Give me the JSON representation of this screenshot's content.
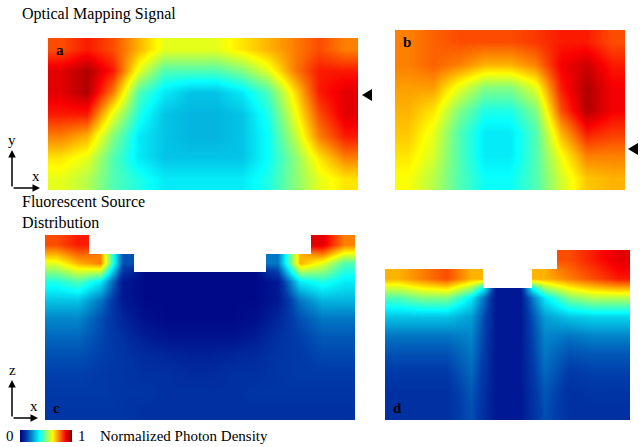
{
  "headings": [
    "Optical Mapping Signal",
    "Fluorescent Source Distribution"
  ],
  "axis_icons": [
    {
      "vertical": "y",
      "horizontal": "x"
    },
    {
      "vertical": "z",
      "horizontal": "x"
    }
  ],
  "colorbar": {
    "label": "Normalized Photon Density",
    "range": [
      0,
      1
    ],
    "ticks": [
      0,
      1
    ]
  },
  "chart_data": [
    {
      "type": "heatmap",
      "title": "a",
      "tick_labels": false,
      "z": [
        [
          0.8,
          0.85,
          0.8,
          0.7,
          0.6,
          0.6,
          0.6,
          0.65,
          0.7,
          0.75,
          0.8,
          0.75
        ],
        [
          0.9,
          0.95,
          0.85,
          0.6,
          0.45,
          0.45,
          0.45,
          0.5,
          0.6,
          0.75,
          0.85,
          0.85
        ],
        [
          0.9,
          0.95,
          0.75,
          0.45,
          0.35,
          0.3,
          0.3,
          0.35,
          0.45,
          0.65,
          0.85,
          0.9
        ],
        [
          0.85,
          0.85,
          0.6,
          0.4,
          0.3,
          0.28,
          0.28,
          0.3,
          0.4,
          0.6,
          0.8,
          0.9
        ],
        [
          0.75,
          0.7,
          0.5,
          0.35,
          0.3,
          0.28,
          0.28,
          0.3,
          0.38,
          0.55,
          0.75,
          0.85
        ],
        [
          0.65,
          0.6,
          0.45,
          0.35,
          0.3,
          0.3,
          0.3,
          0.3,
          0.38,
          0.5,
          0.65,
          0.75
        ],
        [
          0.6,
          0.55,
          0.45,
          0.4,
          0.35,
          0.35,
          0.35,
          0.35,
          0.4,
          0.5,
          0.6,
          0.65
        ]
      ]
    },
    {
      "type": "heatmap",
      "title": "b",
      "tick_labels": false,
      "z": [
        [
          0.75,
          0.78,
          0.8,
          0.8,
          0.8,
          0.82,
          0.85,
          0.85,
          0.8
        ],
        [
          0.75,
          0.78,
          0.75,
          0.7,
          0.7,
          0.75,
          0.88,
          0.92,
          0.85
        ],
        [
          0.72,
          0.72,
          0.6,
          0.5,
          0.5,
          0.6,
          0.85,
          0.95,
          0.88
        ],
        [
          0.7,
          0.65,
          0.5,
          0.4,
          0.4,
          0.5,
          0.8,
          0.95,
          0.88
        ],
        [
          0.68,
          0.6,
          0.45,
          0.35,
          0.35,
          0.45,
          0.7,
          0.85,
          0.82
        ],
        [
          0.65,
          0.58,
          0.45,
          0.35,
          0.35,
          0.45,
          0.62,
          0.75,
          0.75
        ],
        [
          0.62,
          0.55,
          0.45,
          0.38,
          0.38,
          0.45,
          0.58,
          0.68,
          0.7
        ]
      ]
    },
    {
      "type": "heatmap",
      "title": "c",
      "tick_labels": false,
      "z": [
        [
          0.8,
          0.85,
          null,
          null,
          null,
          null,
          null,
          null,
          null,
          null,
          null,
          null,
          0.9,
          0.75
        ],
        [
          0.6,
          0.7,
          0.75,
          0.15,
          null,
          null,
          null,
          null,
          null,
          null,
          0.2,
          0.7,
          0.6,
          0.45
        ],
        [
          0.4,
          0.45,
          0.35,
          0.05,
          0.02,
          0.02,
          0.02,
          0.02,
          0.02,
          0.02,
          0.05,
          0.35,
          0.4,
          0.35
        ],
        [
          0.3,
          0.3,
          0.2,
          0.05,
          0.02,
          0.02,
          0.02,
          0.02,
          0.02,
          0.02,
          0.05,
          0.2,
          0.28,
          0.28
        ],
        [
          0.22,
          0.22,
          0.15,
          0.08,
          0.03,
          0.02,
          0.02,
          0.02,
          0.02,
          0.03,
          0.08,
          0.15,
          0.2,
          0.2
        ],
        [
          0.18,
          0.18,
          0.14,
          0.1,
          0.06,
          0.04,
          0.04,
          0.04,
          0.04,
          0.06,
          0.1,
          0.13,
          0.16,
          0.16
        ],
        [
          0.15,
          0.15,
          0.13,
          0.11,
          0.09,
          0.08,
          0.07,
          0.07,
          0.08,
          0.09,
          0.11,
          0.12,
          0.14,
          0.14
        ],
        [
          0.13,
          0.13,
          0.12,
          0.11,
          0.1,
          0.1,
          0.09,
          0.09,
          0.1,
          0.1,
          0.11,
          0.12,
          0.12,
          0.12
        ],
        [
          0.12,
          0.12,
          0.12,
          0.11,
          0.11,
          0.1,
          0.1,
          0.1,
          0.1,
          0.11,
          0.11,
          0.11,
          0.11,
          0.11
        ],
        [
          0.11,
          0.11,
          0.11,
          0.11,
          0.1,
          0.1,
          0.1,
          0.1,
          0.1,
          0.1,
          0.1,
          0.1,
          0.1,
          0.1
        ]
      ]
    },
    {
      "type": "heatmap",
      "title": "d",
      "tick_labels": false,
      "z": [
        [
          null,
          null,
          null,
          null,
          null,
          null,
          null,
          0.8,
          0.85,
          0.9
        ],
        [
          0.7,
          0.75,
          0.8,
          0.7,
          null,
          null,
          0.7,
          0.75,
          0.8,
          0.85
        ],
        [
          0.45,
          0.5,
          0.5,
          0.35,
          0.05,
          0.05,
          0.35,
          0.5,
          0.55,
          0.55
        ],
        [
          0.3,
          0.3,
          0.3,
          0.25,
          0.05,
          0.05,
          0.25,
          0.3,
          0.32,
          0.32
        ],
        [
          0.2,
          0.2,
          0.2,
          0.22,
          0.05,
          0.05,
          0.22,
          0.2,
          0.22,
          0.22
        ],
        [
          0.15,
          0.15,
          0.15,
          0.2,
          0.05,
          0.05,
          0.2,
          0.15,
          0.16,
          0.16
        ],
        [
          0.12,
          0.12,
          0.12,
          0.18,
          0.05,
          0.05,
          0.18,
          0.12,
          0.13,
          0.13
        ],
        [
          0.1,
          0.1,
          0.1,
          0.16,
          0.05,
          0.05,
          0.16,
          0.1,
          0.11,
          0.11
        ],
        [
          0.1,
          0.1,
          0.1,
          0.15,
          0.05,
          0.05,
          0.15,
          0.1,
          0.1,
          0.1
        ]
      ]
    }
  ]
}
